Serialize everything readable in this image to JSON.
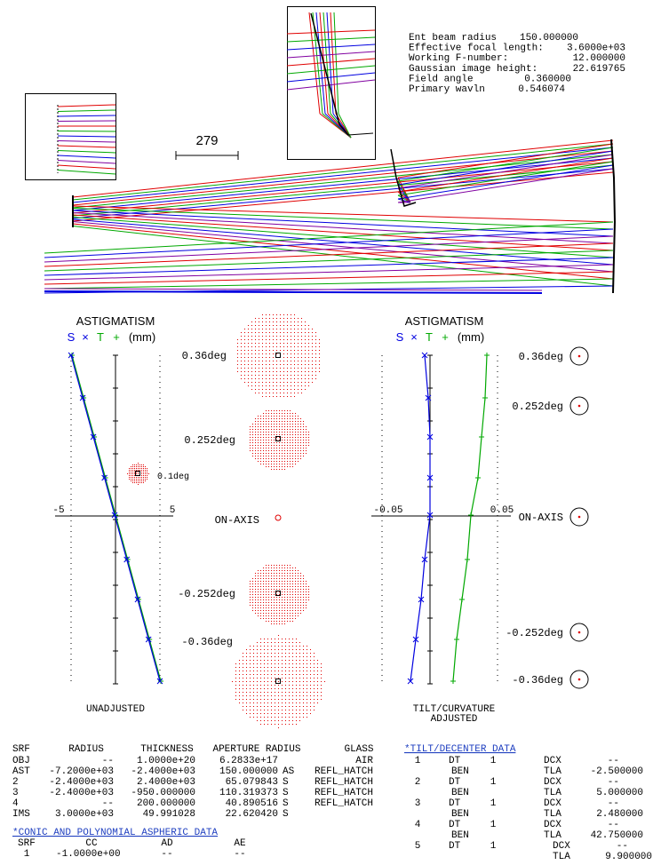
{
  "info": [
    {
      "label": "Ent beam radius",
      "value": "150.000000"
    },
    {
      "label": "Effective focal length:",
      "value": "3.6000e+03"
    },
    {
      "label": "Working F-number:",
      "value": "12.000000"
    },
    {
      "label": "Gaussian image height:",
      "value": "22.619765"
    },
    {
      "label": "Field angle",
      "value": "0.360000"
    },
    {
      "label": "Primary wavln",
      "value": "0.546074"
    }
  ],
  "scale_label": "279",
  "astig_left": {
    "title": "ASTIGMATISM",
    "legend": [
      "S",
      "×",
      "T",
      "+",
      "(mm)"
    ],
    "x_min": "-5",
    "x_max": "5",
    "caption": [
      "UNADJUSTED"
    ]
  },
  "spots_left": [
    "0.36deg",
    "0.252deg",
    "0.1deg",
    "ON-AXIS",
    "-0.252deg",
    "-0.36deg"
  ],
  "astig_right": {
    "title": "ASTIGMATISM",
    "legend": [
      "S",
      "×",
      "T",
      "+",
      "(mm)"
    ],
    "x_min": "-0.05",
    "x_max": "0.05",
    "caption": [
      "TILT/CURVATURE",
      "ADJUSTED"
    ]
  },
  "spots_right": [
    "0.36deg",
    "0.252deg",
    "ON-AXIS",
    "-0.252deg",
    "-0.36deg"
  ],
  "surface_table": {
    "headers": [
      "SRF",
      "RADIUS",
      "THICKNESS",
      "APERTURE RADIUS",
      "GLASS"
    ],
    "rows": [
      {
        "srf": "OBJ",
        "radius": "--",
        "thickness": "1.0000e+20",
        "aperture": "6.2833e+17",
        "glass": "AIR"
      },
      {
        "srf": "AST",
        "radius": "-7.2000e+03",
        "thickness": "-2.4000e+03",
        "aperture": "150.000000",
        "flag": "AS",
        "glass": "REFL_HATCH"
      },
      {
        "srf": "2",
        "radius": "-2.4000e+03",
        "thickness": "2.4000e+03",
        "aperture": "65.079843",
        "flag": "S",
        "glass": "REFL_HATCH"
      },
      {
        "srf": "3",
        "radius": "-2.4000e+03",
        "thickness": "-950.000000",
        "aperture": "110.319373",
        "flag": "S",
        "glass": "REFL_HATCH"
      },
      {
        "srf": "4",
        "radius": "--",
        "thickness": "200.000000",
        "aperture": "40.890516",
        "flag": "S",
        "glass": "REFL_HATCH"
      },
      {
        "srf": "IMS",
        "radius": "3.0000e+03",
        "thickness": "49.991028",
        "aperture": "22.620420",
        "flag": "S"
      }
    ]
  },
  "aspheric": {
    "title": "*CONIC AND POLYNOMIAL ASPHERIC DATA",
    "headers": [
      "SRF",
      "CC",
      "AD",
      "AE"
    ],
    "rows": [
      [
        "1",
        "-1.0000e+00",
        "--",
        "--"
      ]
    ]
  },
  "tilt": {
    "title": "*TILT/DECENTER DATA",
    "entries": [
      {
        "surf": "1",
        "type": "DT",
        "num": "1",
        "dcx_label": "DCX",
        "dcx": "--",
        "ben": "BEN",
        "tla_label": "TLA",
        "tla": "-2.500000"
      },
      {
        "surf": "2",
        "type": "DT",
        "num": "1",
        "dcx_label": "DCX",
        "dcx": "--",
        "ben": "BEN",
        "tla_label": "TLA",
        "tla": "5.000000"
      },
      {
        "surf": "3",
        "type": "DT",
        "num": "1",
        "dcx_label": "DCX",
        "dcx": "--",
        "ben": "BEN",
        "tla_label": "TLA",
        "tla": "2.480000"
      },
      {
        "surf": "4",
        "type": "DT",
        "num": "1",
        "dcx_label": "DCX",
        "dcx": "--",
        "ben": "BEN",
        "tla_label": "TLA",
        "tla": "42.750000"
      },
      {
        "surf": "5",
        "type": "DT",
        "num": "1",
        "dcx_label": "DCX",
        "dcx": "--",
        "tla_label": "TLA",
        "tla": "9.900000"
      }
    ]
  }
}
